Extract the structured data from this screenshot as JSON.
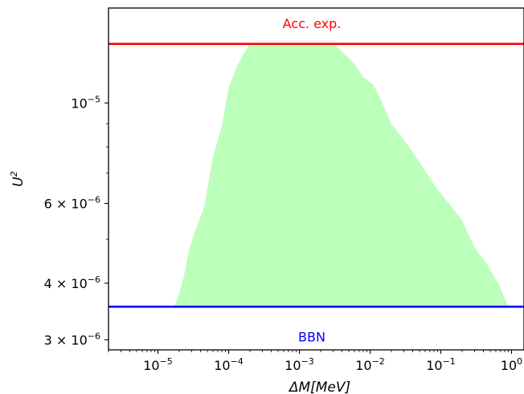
{
  "chart_data": {
    "type": "area",
    "xlabel": "ΔM[MeV]",
    "ylabel": "U",
    "ylabel_sup": "2",
    "xscale": "log",
    "yscale": "log",
    "xlim": [
      2e-06,
      1.5
    ],
    "ylim": [
      2.85e-06,
      1.62e-05
    ],
    "xtick_labels": [
      {
        "value": 1e-05,
        "base": "10",
        "exp": "−5"
      },
      {
        "value": 0.0001,
        "base": "10",
        "exp": "−4"
      },
      {
        "value": 0.001,
        "base": "10",
        "exp": "−3"
      },
      {
        "value": 0.01,
        "base": "10",
        "exp": "−2"
      },
      {
        "value": 0.1,
        "base": "10",
        "exp": "−1"
      },
      {
        "value": 1,
        "base": "10",
        "exp": "0"
      }
    ],
    "ytick_labels": [
      {
        "value": 3e-06,
        "mant": "3 × ",
        "base": "10",
        "exp": "−6"
      },
      {
        "value": 4e-06,
        "mant": "4 × ",
        "base": "10",
        "exp": "−6"
      },
      {
        "value": 6e-06,
        "mant": "6 × ",
        "base": "10",
        "exp": "−6"
      },
      {
        "value": 1e-05,
        "mant": "",
        "base": "10",
        "exp": "−5"
      }
    ],
    "y_minor_ticks": [
      5e-06,
      7e-06,
      8e-06,
      9e-06
    ],
    "hlines": [
      {
        "label": "Acc. exp.",
        "y": 1.35e-05,
        "color": "#ff0000",
        "label_y": 1.5e-05
      },
      {
        "label": "BBN",
        "y": 3.55e-06,
        "color": "#0000ff",
        "label_y": 3.05e-06
      }
    ],
    "region": {
      "color": "#bbffbb",
      "x": [
        1.7e-05,
        2e-05,
        2.3e-05,
        2.8e-05,
        3.5e-05,
        4.5e-05,
        6e-05,
        8e-05,
        0.0001,
        0.00013,
        0.00016,
        0.0002,
        0.00025,
        0.001,
        0.003,
        0.004,
        0.006,
        0.008,
        0.011,
        0.014,
        0.02,
        0.03,
        0.05,
        0.08,
        0.13,
        0.2,
        0.3,
        0.45,
        0.65,
        0.9
      ],
      "upper": [
        3.55e-06,
        3.8e-06,
        4.1e-06,
        4.8e-06,
        5.3e-06,
        5.9e-06,
        7.6e-06,
        8.9e-06,
        1.08e-05,
        1.2e-05,
        1.28e-05,
        1.35e-05,
        1.35e-05,
        1.35e-05,
        1.35e-05,
        1.3e-05,
        1.22e-05,
        1.14e-05,
        1.1e-05,
        1.02e-05,
        9e-06,
        8.3e-06,
        7.4e-06,
        6.6e-06,
        6e-06,
        5.5e-06,
        4.8e-06,
        4.4e-06,
        4e-06,
        3.55e-06
      ],
      "lower": 3.55e-06
    }
  }
}
